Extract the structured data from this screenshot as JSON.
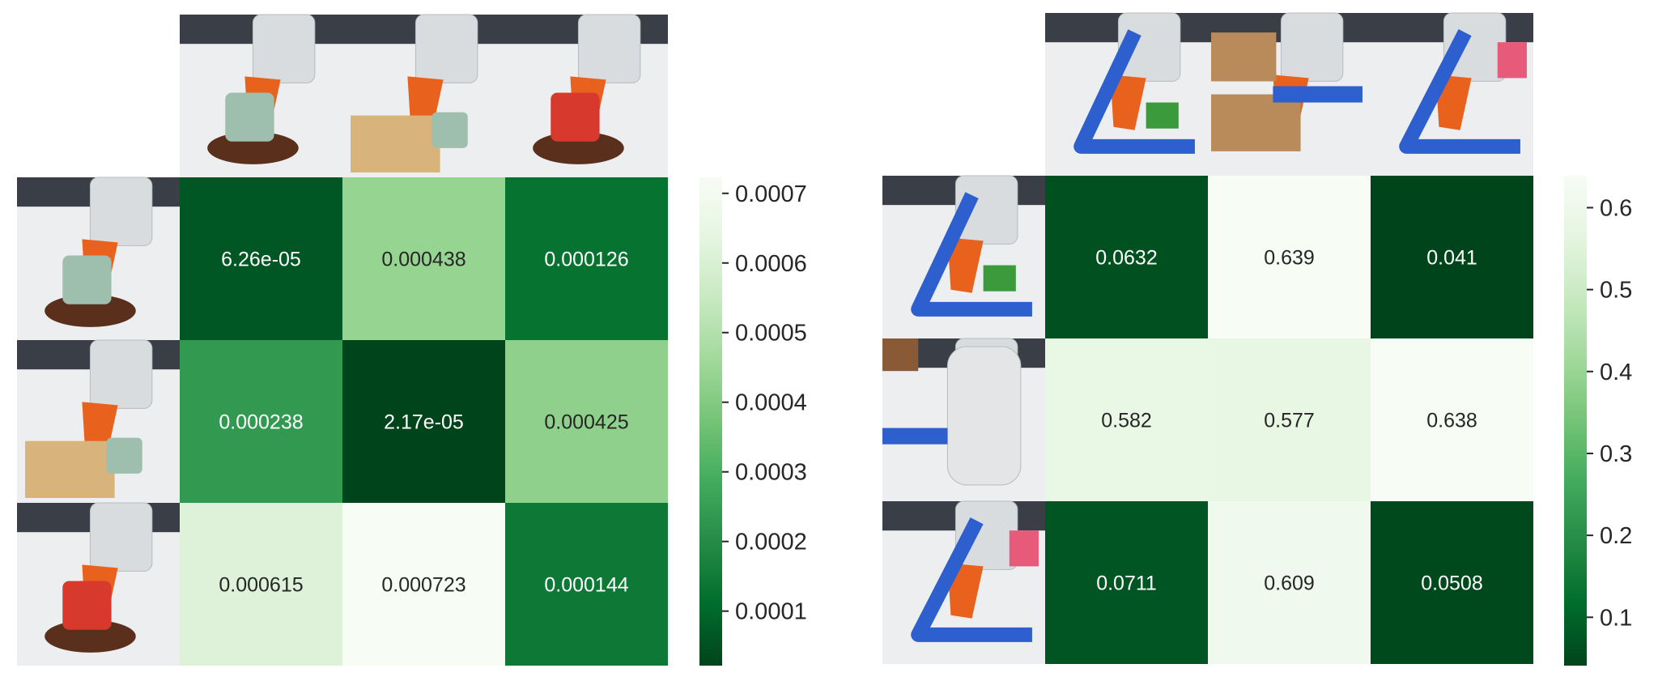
{
  "chart_data": [
    {
      "type": "heatmap",
      "colormap": "Greens_r",
      "rows": 3,
      "cols": 3,
      "values": [
        [
          6.26e-05,
          0.000438,
          0.000126
        ],
        [
          0.000238,
          2.17e-05,
          0.000425
        ],
        [
          0.000615,
          0.000723,
          0.000144
        ]
      ],
      "annotations": [
        [
          "6.26e-05",
          "0.000438",
          "0.000126"
        ],
        [
          "0.000238",
          "2.17e-05",
          "0.000425"
        ],
        [
          "0.000615",
          "0.000723",
          "0.000144"
        ]
      ],
      "colorbar": {
        "range": [
          2.17e-05,
          0.000723
        ],
        "ticks": [
          0.0001,
          0.0002,
          0.0003,
          0.0004,
          0.0005,
          0.0006,
          0.0007
        ],
        "tick_labels": [
          "0.0001",
          "0.0002",
          "0.0003",
          "0.0004",
          "0.0005",
          "0.0006",
          "0.0007"
        ]
      },
      "row_images": [
        "robot-gripper-teal-mug-image",
        "robot-gripper-mug-wood-block-image",
        "robot-gripper-red-cup-image"
      ],
      "col_images": [
        "robot-teal-mug-on-stand-image",
        "robot-mug-on-wood-block-image",
        "robot-red-mug-on-stand-image"
      ]
    },
    {
      "type": "heatmap",
      "colormap": "Greens_r",
      "rows": 3,
      "cols": 3,
      "values": [
        [
          0.0632,
          0.639,
          0.041
        ],
        [
          0.582,
          0.577,
          0.638
        ],
        [
          0.0711,
          0.609,
          0.0508
        ]
      ],
      "annotations": [
        [
          "0.0632",
          "0.639",
          "0.041"
        ],
        [
          "0.582",
          "0.577",
          "0.638"
        ],
        [
          "0.0711",
          "0.609",
          "0.0508"
        ]
      ],
      "colorbar": {
        "range": [
          0.041,
          0.639
        ],
        "ticks": [
          0.1,
          0.2,
          0.3,
          0.4,
          0.5,
          0.6
        ],
        "tick_labels": [
          "0.1",
          "0.2",
          "0.3",
          "0.4",
          "0.5",
          "0.6"
        ]
      },
      "row_images": [
        "robot-gripper-blue-L-block-image",
        "robot-gripper-closeup-image",
        "robot-gripper-blue-L-pink-block-image"
      ],
      "col_images": [
        "robot-blue-L-green-block-image",
        "robot-boxes-blue-bar-image",
        "robot-blue-L-pink-block-image"
      ]
    }
  ]
}
